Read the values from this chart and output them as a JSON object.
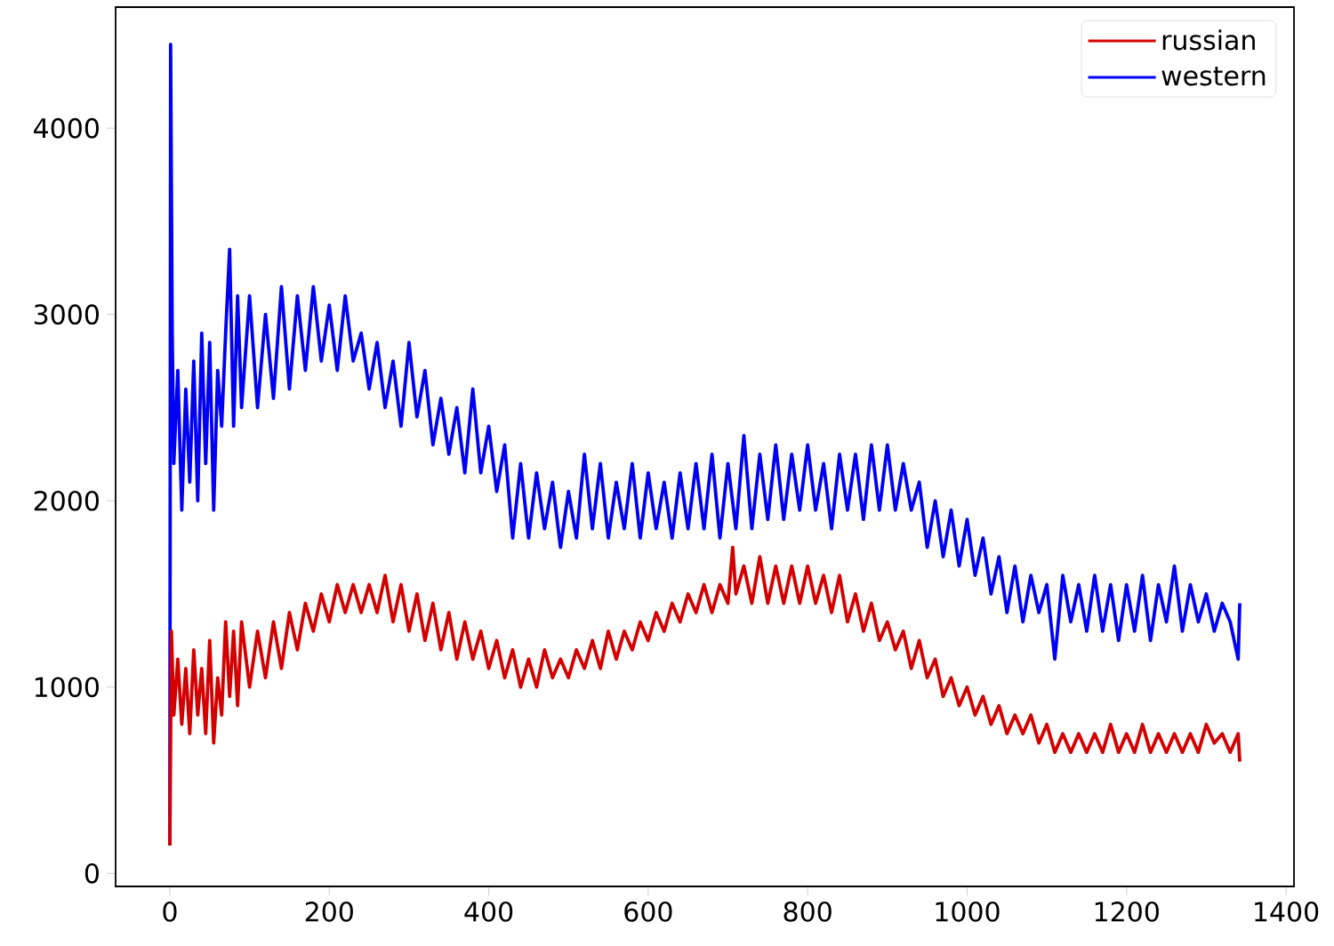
{
  "chart_data": {
    "type": "line",
    "xlim": [
      -68,
      1410
    ],
    "ylim": [
      -70,
      4650
    ],
    "xticks": [
      0,
      200,
      400,
      600,
      800,
      1000,
      1200,
      1400
    ],
    "yticks": [
      0,
      1000,
      2000,
      3000,
      4000
    ],
    "legend": "top right",
    "series": [
      {
        "name": "russian",
        "color": "#d40000",
        "x": [
          0,
          2,
          5,
          10,
          15,
          20,
          25,
          30,
          35,
          40,
          45,
          50,
          55,
          60,
          65,
          70,
          75,
          80,
          85,
          90,
          100,
          110,
          120,
          130,
          140,
          150,
          160,
          170,
          180,
          190,
          200,
          210,
          220,
          230,
          240,
          250,
          260,
          270,
          280,
          290,
          300,
          310,
          320,
          330,
          340,
          350,
          360,
          370,
          380,
          390,
          400,
          410,
          420,
          430,
          440,
          450,
          460,
          470,
          480,
          490,
          500,
          510,
          520,
          530,
          540,
          550,
          560,
          570,
          580,
          590,
          600,
          610,
          620,
          630,
          640,
          650,
          660,
          670,
          680,
          690,
          700,
          706,
          710,
          720,
          730,
          740,
          750,
          760,
          770,
          780,
          790,
          800,
          810,
          820,
          830,
          840,
          850,
          860,
          870,
          880,
          890,
          900,
          910,
          920,
          930,
          940,
          950,
          960,
          970,
          980,
          990,
          1000,
          1010,
          1020,
          1030,
          1040,
          1050,
          1060,
          1070,
          1080,
          1090,
          1100,
          1110,
          1120,
          1130,
          1140,
          1150,
          1160,
          1170,
          1180,
          1190,
          1200,
          1210,
          1220,
          1230,
          1240,
          1250,
          1260,
          1270,
          1280,
          1290,
          1300,
          1310,
          1320,
          1330,
          1340,
          1342
        ],
        "values": [
          150,
          1300,
          850,
          1150,
          800,
          1100,
          750,
          1200,
          850,
          1100,
          750,
          1250,
          700,
          1050,
          850,
          1350,
          950,
          1300,
          900,
          1350,
          1000,
          1300,
          1050,
          1350,
          1100,
          1400,
          1200,
          1450,
          1300,
          1500,
          1350,
          1550,
          1400,
          1550,
          1400,
          1550,
          1400,
          1600,
          1350,
          1550,
          1300,
          1500,
          1250,
          1450,
          1200,
          1400,
          1150,
          1350,
          1150,
          1300,
          1100,
          1250,
          1050,
          1200,
          1000,
          1150,
          1000,
          1200,
          1050,
          1150,
          1050,
          1200,
          1100,
          1250,
          1100,
          1300,
          1150,
          1300,
          1200,
          1350,
          1250,
          1400,
          1300,
          1450,
          1350,
          1500,
          1400,
          1550,
          1400,
          1550,
          1450,
          1750,
          1500,
          1650,
          1450,
          1700,
          1450,
          1650,
          1450,
          1650,
          1450,
          1650,
          1450,
          1600,
          1400,
          1600,
          1350,
          1500,
          1300,
          1450,
          1250,
          1350,
          1200,
          1300,
          1100,
          1250,
          1050,
          1150,
          950,
          1050,
          900,
          1000,
          850,
          950,
          800,
          900,
          750,
          850,
          750,
          850,
          700,
          800,
          650,
          750,
          650,
          750,
          650,
          750,
          650,
          800,
          650,
          750,
          650,
          800,
          650,
          750,
          650,
          750,
          650,
          750,
          650,
          800,
          700,
          750,
          650,
          750,
          600
        ]
      },
      {
        "name": "western",
        "color": "#0000f5",
        "x": [
          0,
          1,
          3,
          5,
          10,
          15,
          20,
          25,
          30,
          35,
          40,
          45,
          50,
          55,
          60,
          65,
          70,
          75,
          80,
          85,
          90,
          100,
          110,
          120,
          130,
          140,
          150,
          160,
          170,
          180,
          190,
          200,
          210,
          220,
          230,
          240,
          250,
          260,
          270,
          280,
          290,
          300,
          310,
          320,
          330,
          340,
          350,
          360,
          370,
          380,
          390,
          400,
          410,
          420,
          430,
          440,
          450,
          460,
          470,
          480,
          490,
          500,
          510,
          520,
          530,
          540,
          550,
          560,
          570,
          580,
          590,
          600,
          610,
          620,
          630,
          640,
          650,
          660,
          670,
          680,
          690,
          700,
          710,
          720,
          730,
          740,
          750,
          760,
          770,
          780,
          790,
          800,
          810,
          820,
          830,
          840,
          850,
          860,
          870,
          880,
          890,
          900,
          910,
          920,
          930,
          940,
          950,
          960,
          970,
          980,
          990,
          1000,
          1010,
          1020,
          1030,
          1040,
          1050,
          1060,
          1070,
          1080,
          1090,
          1100,
          1110,
          1120,
          1130,
          1140,
          1150,
          1160,
          1170,
          1180,
          1190,
          1200,
          1210,
          1220,
          1230,
          1240,
          1250,
          1260,
          1270,
          1280,
          1290,
          1300,
          1310,
          1320,
          1330,
          1340,
          1342
        ],
        "values": [
          150,
          4450,
          2900,
          2200,
          2700,
          1950,
          2600,
          2100,
          2750,
          2000,
          2900,
          2200,
          2850,
          1950,
          2700,
          2400,
          2900,
          3350,
          2400,
          3100,
          2500,
          3100,
          2500,
          3000,
          2550,
          3150,
          2600,
          3100,
          2700,
          3150,
          2750,
          3050,
          2700,
          3100,
          2750,
          2900,
          2600,
          2850,
          2500,
          2750,
          2400,
          2850,
          2450,
          2700,
          2300,
          2550,
          2250,
          2500,
          2150,
          2600,
          2150,
          2400,
          2050,
          2300,
          1800,
          2200,
          1800,
          2150,
          1850,
          2100,
          1750,
          2050,
          1800,
          2250,
          1850,
          2200,
          1800,
          2100,
          1850,
          2200,
          1800,
          2150,
          1850,
          2100,
          1800,
          2150,
          1850,
          2200,
          1850,
          2250,
          1800,
          2200,
          1850,
          2350,
          1850,
          2250,
          1900,
          2300,
          1900,
          2250,
          1950,
          2300,
          1950,
          2200,
          1850,
          2250,
          1950,
          2250,
          1900,
          2300,
          1950,
          2300,
          1950,
          2200,
          1950,
          2100,
          1750,
          2000,
          1700,
          1950,
          1650,
          1900,
          1600,
          1800,
          1500,
          1700,
          1400,
          1650,
          1350,
          1600,
          1400,
          1550,
          1150,
          1600,
          1350,
          1550,
          1300,
          1600,
          1300,
          1550,
          1250,
          1550,
          1300,
          1600,
          1250,
          1550,
          1350,
          1650,
          1300,
          1550,
          1350,
          1500,
          1300,
          1450,
          1350,
          1150,
          1450
        ]
      }
    ]
  }
}
